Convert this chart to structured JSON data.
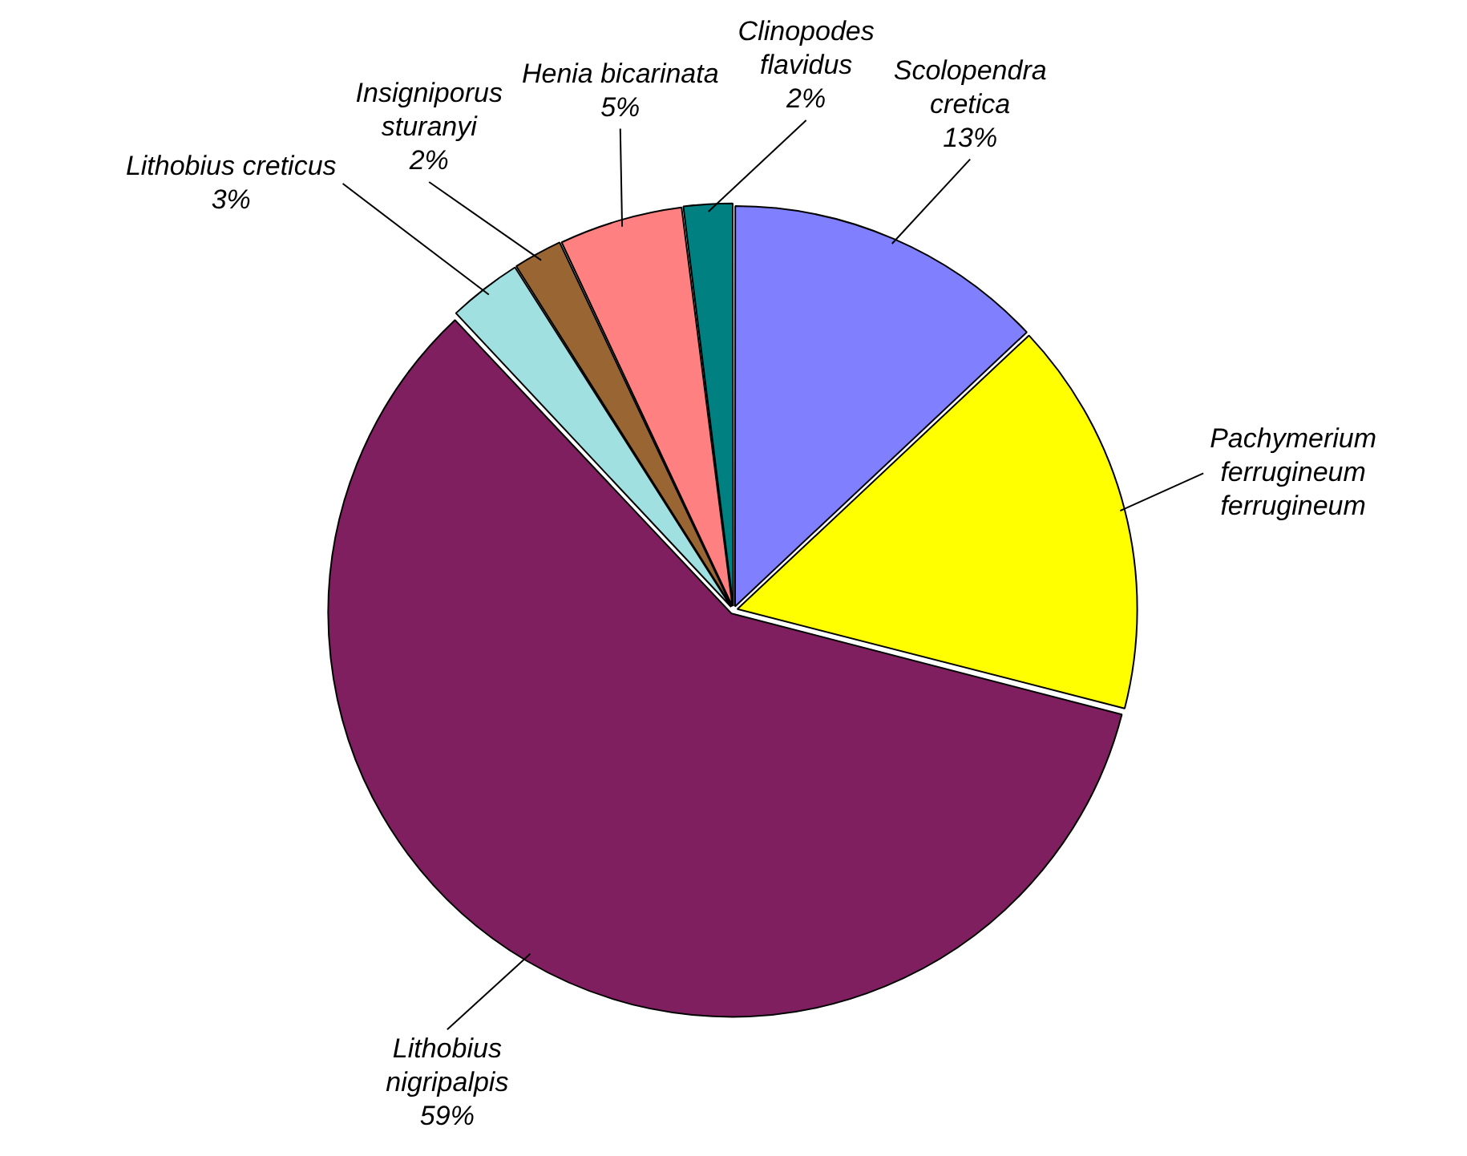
{
  "chart_data": {
    "type": "pie",
    "categories": [
      "Scolopendra cretica",
      "Pachymerium ferrugineum ferrugineum",
      "Lithobius nigripalpis",
      "Lithobius creticus",
      "Insigniporus sturanyi",
      "Henia bicarinata",
      "Clinopodes flavidus"
    ],
    "values": [
      13,
      16,
      59,
      3,
      2,
      5,
      2
    ],
    "value_labels": [
      "13%",
      null,
      "59%",
      "3%",
      "2%",
      "5%",
      "2%"
    ],
    "colors": [
      "#8080ff",
      "#ffff00",
      "#7f1f5f",
      "#a0e0e0",
      "#996633",
      "#ff8080",
      "#008080"
    ],
    "legend": false
  }
}
